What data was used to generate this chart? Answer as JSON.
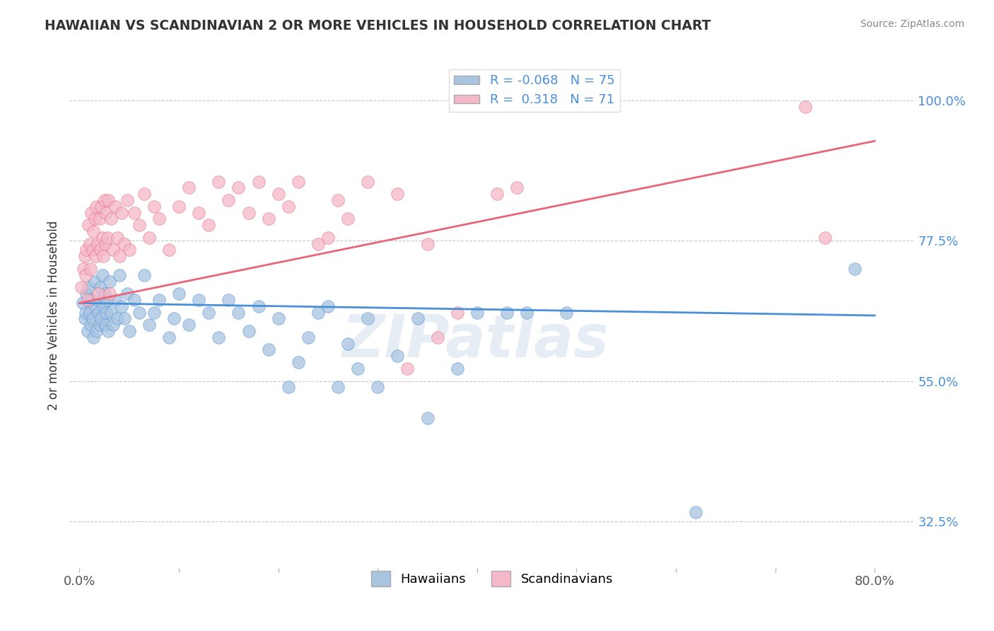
{
  "title": "HAWAIIAN VS SCANDINAVIAN 2 OR MORE VEHICLES IN HOUSEHOLD CORRELATION CHART",
  "source": "Source: ZipAtlas.com",
  "xlabel_hawaiians": "Hawaiians",
  "xlabel_scandinavians": "Scandinavians",
  "ylabel": "2 or more Vehicles in Household",
  "watermark": "ZIPatlas",
  "xmin": 0.0,
  "xmax": 0.8,
  "ymin": 0.25,
  "ymax": 1.06,
  "yticks": [
    0.325,
    0.55,
    0.775,
    1.0
  ],
  "ytick_labels": [
    "32.5%",
    "55.0%",
    "77.5%",
    "100.0%"
  ],
  "r_hawaiian": -0.068,
  "n_hawaiian": 75,
  "r_scandinavian": 0.318,
  "n_scandinavian": 71,
  "hawaiian_color": "#a8c4e0",
  "scandinavian_color": "#f4b8c8",
  "hawaiian_line_color": "#4a90d9",
  "scandinavian_line_color": "#e8657a",
  "background_color": "#ffffff",
  "grid_color": "#c8c8c8",
  "hawaiian_scatter": [
    [
      0.003,
      0.675
    ],
    [
      0.005,
      0.65
    ],
    [
      0.006,
      0.66
    ],
    [
      0.007,
      0.69
    ],
    [
      0.008,
      0.63
    ],
    [
      0.009,
      0.7
    ],
    [
      0.01,
      0.66
    ],
    [
      0.011,
      0.64
    ],
    [
      0.012,
      0.68
    ],
    [
      0.013,
      0.65
    ],
    [
      0.014,
      0.62
    ],
    [
      0.015,
      0.71
    ],
    [
      0.016,
      0.67
    ],
    [
      0.017,
      0.63
    ],
    [
      0.018,
      0.68
    ],
    [
      0.019,
      0.66
    ],
    [
      0.02,
      0.64
    ],
    [
      0.021,
      0.7
    ],
    [
      0.022,
      0.65
    ],
    [
      0.023,
      0.72
    ],
    [
      0.024,
      0.67
    ],
    [
      0.025,
      0.69
    ],
    [
      0.026,
      0.64
    ],
    [
      0.027,
      0.66
    ],
    [
      0.028,
      0.68
    ],
    [
      0.029,
      0.63
    ],
    [
      0.03,
      0.71
    ],
    [
      0.032,
      0.66
    ],
    [
      0.034,
      0.64
    ],
    [
      0.036,
      0.68
    ],
    [
      0.038,
      0.65
    ],
    [
      0.04,
      0.72
    ],
    [
      0.042,
      0.67
    ],
    [
      0.045,
      0.65
    ],
    [
      0.048,
      0.69
    ],
    [
      0.05,
      0.63
    ],
    [
      0.055,
      0.68
    ],
    [
      0.06,
      0.66
    ],
    [
      0.065,
      0.72
    ],
    [
      0.07,
      0.64
    ],
    [
      0.075,
      0.66
    ],
    [
      0.08,
      0.68
    ],
    [
      0.09,
      0.62
    ],
    [
      0.095,
      0.65
    ],
    [
      0.1,
      0.69
    ],
    [
      0.11,
      0.64
    ],
    [
      0.12,
      0.68
    ],
    [
      0.13,
      0.66
    ],
    [
      0.14,
      0.62
    ],
    [
      0.15,
      0.68
    ],
    [
      0.16,
      0.66
    ],
    [
      0.17,
      0.63
    ],
    [
      0.18,
      0.67
    ],
    [
      0.19,
      0.6
    ],
    [
      0.2,
      0.65
    ],
    [
      0.21,
      0.54
    ],
    [
      0.22,
      0.58
    ],
    [
      0.23,
      0.62
    ],
    [
      0.24,
      0.66
    ],
    [
      0.25,
      0.67
    ],
    [
      0.26,
      0.54
    ],
    [
      0.27,
      0.61
    ],
    [
      0.28,
      0.57
    ],
    [
      0.29,
      0.65
    ],
    [
      0.3,
      0.54
    ],
    [
      0.32,
      0.59
    ],
    [
      0.34,
      0.65
    ],
    [
      0.35,
      0.49
    ],
    [
      0.38,
      0.57
    ],
    [
      0.4,
      0.66
    ],
    [
      0.43,
      0.66
    ],
    [
      0.45,
      0.66
    ],
    [
      0.49,
      0.66
    ],
    [
      0.62,
      0.34
    ],
    [
      0.78,
      0.73
    ]
  ],
  "scandinavian_scatter": [
    [
      0.002,
      0.7
    ],
    [
      0.004,
      0.73
    ],
    [
      0.005,
      0.75
    ],
    [
      0.006,
      0.72
    ],
    [
      0.007,
      0.76
    ],
    [
      0.008,
      0.68
    ],
    [
      0.009,
      0.8
    ],
    [
      0.01,
      0.77
    ],
    [
      0.011,
      0.73
    ],
    [
      0.012,
      0.82
    ],
    [
      0.013,
      0.76
    ],
    [
      0.014,
      0.79
    ],
    [
      0.015,
      0.81
    ],
    [
      0.016,
      0.75
    ],
    [
      0.017,
      0.83
    ],
    [
      0.018,
      0.77
    ],
    [
      0.019,
      0.69
    ],
    [
      0.02,
      0.81
    ],
    [
      0.021,
      0.76
    ],
    [
      0.022,
      0.83
    ],
    [
      0.023,
      0.78
    ],
    [
      0.024,
      0.75
    ],
    [
      0.025,
      0.84
    ],
    [
      0.026,
      0.77
    ],
    [
      0.027,
      0.82
    ],
    [
      0.028,
      0.78
    ],
    [
      0.029,
      0.84
    ],
    [
      0.03,
      0.69
    ],
    [
      0.032,
      0.81
    ],
    [
      0.034,
      0.76
    ],
    [
      0.036,
      0.83
    ],
    [
      0.038,
      0.78
    ],
    [
      0.04,
      0.75
    ],
    [
      0.042,
      0.82
    ],
    [
      0.045,
      0.77
    ],
    [
      0.048,
      0.84
    ],
    [
      0.05,
      0.76
    ],
    [
      0.055,
      0.82
    ],
    [
      0.06,
      0.8
    ],
    [
      0.065,
      0.85
    ],
    [
      0.07,
      0.78
    ],
    [
      0.075,
      0.83
    ],
    [
      0.08,
      0.81
    ],
    [
      0.09,
      0.76
    ],
    [
      0.1,
      0.83
    ],
    [
      0.11,
      0.86
    ],
    [
      0.12,
      0.82
    ],
    [
      0.13,
      0.8
    ],
    [
      0.14,
      0.87
    ],
    [
      0.15,
      0.84
    ],
    [
      0.16,
      0.86
    ],
    [
      0.17,
      0.82
    ],
    [
      0.18,
      0.87
    ],
    [
      0.19,
      0.81
    ],
    [
      0.2,
      0.85
    ],
    [
      0.21,
      0.83
    ],
    [
      0.22,
      0.87
    ],
    [
      0.24,
      0.77
    ],
    [
      0.25,
      0.78
    ],
    [
      0.26,
      0.84
    ],
    [
      0.27,
      0.81
    ],
    [
      0.29,
      0.87
    ],
    [
      0.32,
      0.85
    ],
    [
      0.33,
      0.57
    ],
    [
      0.35,
      0.77
    ],
    [
      0.36,
      0.62
    ],
    [
      0.38,
      0.66
    ],
    [
      0.42,
      0.85
    ],
    [
      0.44,
      0.86
    ],
    [
      0.73,
      0.99
    ],
    [
      0.75,
      0.78
    ]
  ],
  "hawaiian_line_x": [
    0.0,
    0.8
  ],
  "hawaiian_line_y": [
    0.675,
    0.655
  ],
  "scandinavian_line_x": [
    0.0,
    0.8
  ],
  "scandinavian_line_y": [
    0.675,
    0.935
  ]
}
